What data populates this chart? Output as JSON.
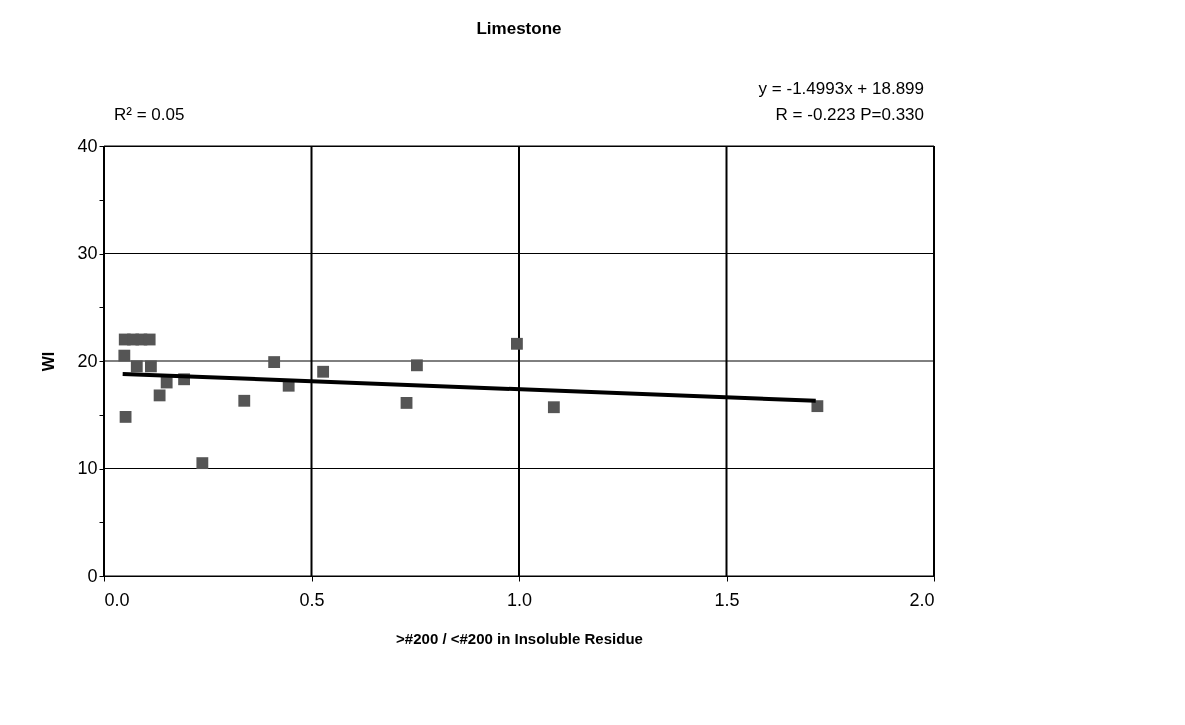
{
  "chart_data": {
    "type": "scatter",
    "title": "Limestone",
    "xlabel": ">#200 / <#200 in Insoluble Residue",
    "ylabel": "WI",
    "annotations": [
      "R² = 0.05",
      "y = -1.4993x + 18.899",
      "R = -0.223  P=0.330"
    ],
    "series": [
      {
        "color": "#555555",
        "marker": "square",
        "x": [
          0.049,
          0.05,
          0.07,
          0.09,
          0.11,
          0.079,
          0.113,
          0.193,
          0.151,
          0.134,
          0.052,
          0.237,
          0.338,
          0.41,
          0.445,
          0.528,
          0.754,
          0.729,
          1.084,
          0.995,
          1.719
        ],
        "values": [
          20.5,
          22,
          22,
          22,
          22,
          19.5,
          19.5,
          18.3,
          18.0,
          16.8,
          14.8,
          10.5,
          16.3,
          19.9,
          17.7,
          19.0,
          19.6,
          16.1,
          15.7,
          21.6,
          15.8
        ]
      },
      {
        "type": "line",
        "color": "#000000",
        "x": [
          0.045,
          1.715
        ],
        "values": [
          18.8,
          16.3
        ]
      }
    ],
    "xlim": [
      0,
      2
    ],
    "xticks": [
      {
        "value": 0,
        "label": "0.0"
      },
      {
        "value": 0.5,
        "label": "0.5"
      },
      {
        "value": 1,
        "label": "1.0"
      },
      {
        "value": 1.5,
        "label": "1.5"
      },
      {
        "value": 2,
        "label": "2.0"
      }
    ],
    "ylim": [
      0,
      40
    ],
    "yticks": [
      0,
      {
        "value": 5,
        "label": null
      },
      10,
      {
        "value": 15,
        "label": null
      },
      20,
      {
        "value": 25,
        "label": null
      },
      30,
      {
        "value": 35,
        "label": null
      },
      40
    ],
    "grid": true
  }
}
